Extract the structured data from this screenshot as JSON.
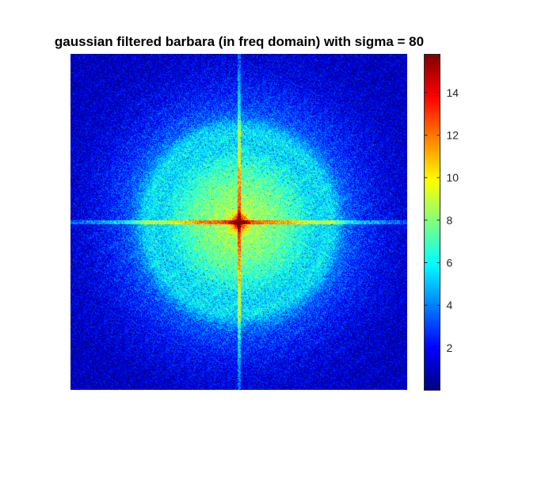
{
  "chart_data": {
    "type": "heatmap",
    "title": "gaussian filtered barbara (in freq domain) with sigma = 80",
    "xlabel": "",
    "ylabel": "",
    "colormap": "jet",
    "color_range": [
      0,
      15.8
    ],
    "colorbar_ticks": [
      {
        "value": 2,
        "label": "2"
      },
      {
        "value": 4,
        "label": "4"
      },
      {
        "value": 6,
        "label": "6"
      },
      {
        "value": 8,
        "label": "8"
      },
      {
        "value": 10,
        "label": "10"
      },
      {
        "value": 12,
        "label": "12"
      },
      {
        "value": 14,
        "label": "14"
      }
    ],
    "center_peak_value": 15.8,
    "background_value": 1.0,
    "axes_visible": false,
    "colorbar_position": "right"
  }
}
